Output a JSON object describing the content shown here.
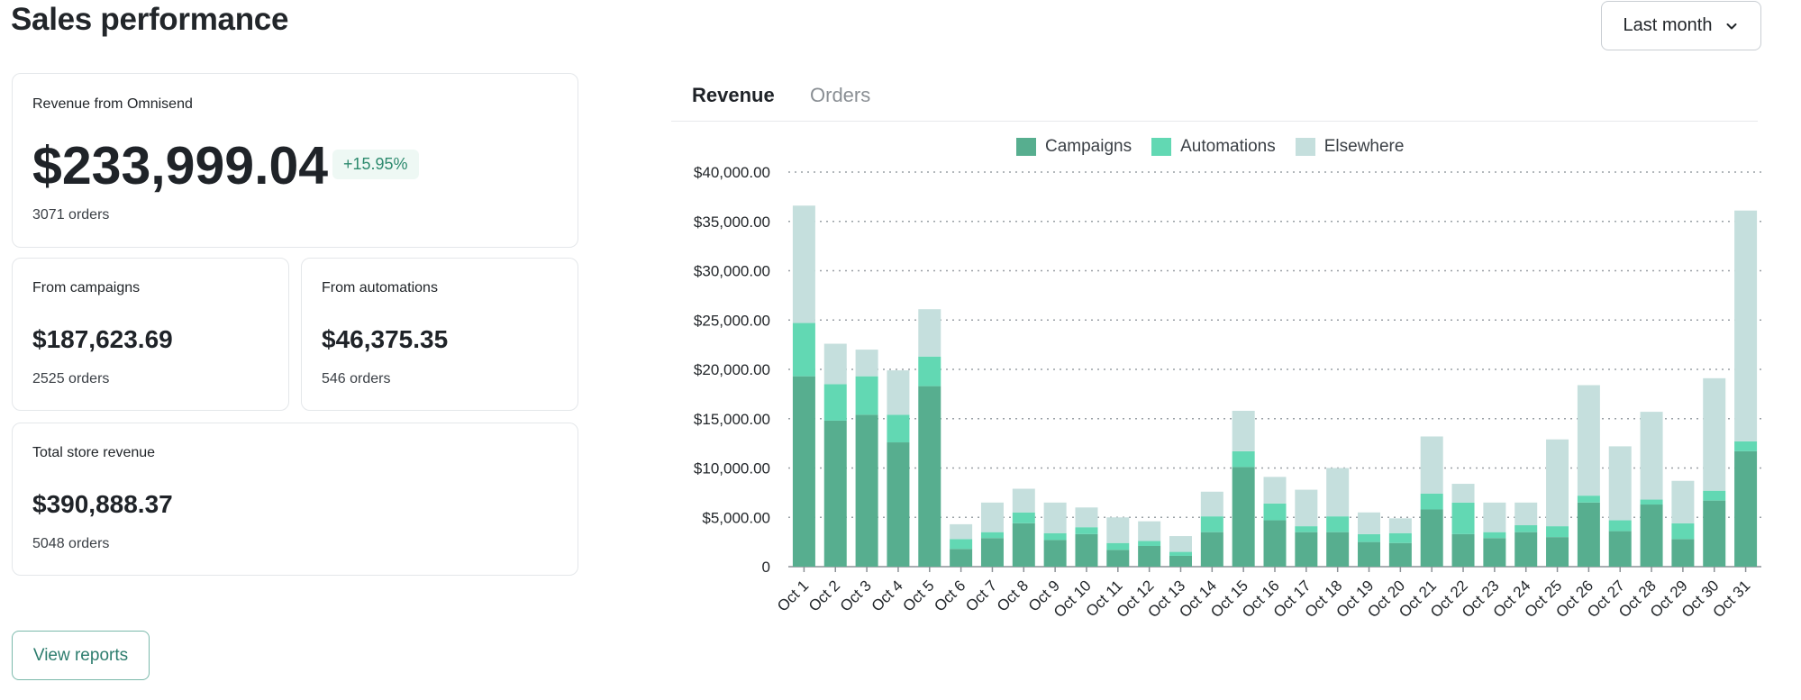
{
  "page": {
    "title": "Sales performance"
  },
  "period_selector": {
    "label": "Last month"
  },
  "cards": {
    "omnisend": {
      "label": "Revenue from Omnisend",
      "value": "$233,999.04",
      "change": "+15.95%",
      "orders": "3071 orders"
    },
    "campaigns": {
      "label": "From campaigns",
      "value": "$187,623.69",
      "orders": "2525 orders"
    },
    "automations": {
      "label": "From automations",
      "value": "$46,375.35",
      "orders": "546 orders"
    },
    "total": {
      "label": "Total store revenue",
      "value": "$390,888.37",
      "orders": "5048 orders"
    }
  },
  "view_reports": {
    "label": "View reports"
  },
  "tabs": [
    {
      "label": "Revenue",
      "active": true
    },
    {
      "label": "Orders",
      "active": false
    }
  ],
  "colors": {
    "campaigns": "#57ae8f",
    "automations": "#62d8b3",
    "elsewhere": "#c5dfdd",
    "accent": "#2d8a6e"
  },
  "chart_data": {
    "type": "bar",
    "stacked": true,
    "categories": [
      "Oct 1",
      "Oct 2",
      "Oct 3",
      "Oct 4",
      "Oct 5",
      "Oct 6",
      "Oct 7",
      "Oct 8",
      "Oct 9",
      "Oct 10",
      "Oct 11",
      "Oct 12",
      "Oct 13",
      "Oct 14",
      "Oct 15",
      "Oct 16",
      "Oct 17",
      "Oct 18",
      "Oct 19",
      "Oct 20",
      "Oct 21",
      "Oct 22",
      "Oct 23",
      "Oct 24",
      "Oct 25",
      "Oct 26",
      "Oct 27",
      "Oct 28",
      "Oct 29",
      "Oct 30",
      "Oct 31"
    ],
    "series": [
      {
        "name": "Campaigns",
        "values": [
          19300,
          14800,
          15400,
          12600,
          18300,
          1800,
          2900,
          4400,
          2700,
          3300,
          1700,
          2100,
          1100,
          3500,
          10100,
          4700,
          3500,
          3500,
          2500,
          2400,
          5800,
          3300,
          2900,
          3500,
          3000,
          6500,
          3600,
          6300,
          2800,
          6700,
          11700
        ]
      },
      {
        "name": "Automations",
        "values": [
          5400,
          3700,
          3900,
          2800,
          3000,
          1000,
          600,
          1100,
          700,
          700,
          700,
          500,
          400,
          1600,
          1600,
          1700,
          600,
          1600,
          800,
          1000,
          1600,
          3200,
          600,
          700,
          1100,
          700,
          1100,
          500,
          1600,
          1000,
          1000
        ]
      },
      {
        "name": "Elsewhere",
        "values": [
          11900,
          4100,
          2700,
          4500,
          4800,
          1500,
          3000,
          2400,
          3100,
          2000,
          2600,
          2000,
          1600,
          2500,
          4100,
          2700,
          3700,
          4900,
          2200,
          1500,
          5800,
          1900,
          3000,
          2300,
          8800,
          11200,
          7500,
          8900,
          4300,
          11400,
          23400
        ]
      }
    ],
    "ylim": [
      0,
      40000
    ],
    "yticks": [
      0,
      5000,
      10000,
      15000,
      20000,
      25000,
      30000,
      35000,
      40000
    ],
    "ytick_labels": [
      "0",
      "$5,000.00",
      "$10,000.00",
      "$15,000.00",
      "$20,000.00",
      "$25,000.00",
      "$30,000.00",
      "$35,000.00",
      "$40,000.00"
    ],
    "legend": {
      "position": "top-center"
    },
    "grid": true
  }
}
